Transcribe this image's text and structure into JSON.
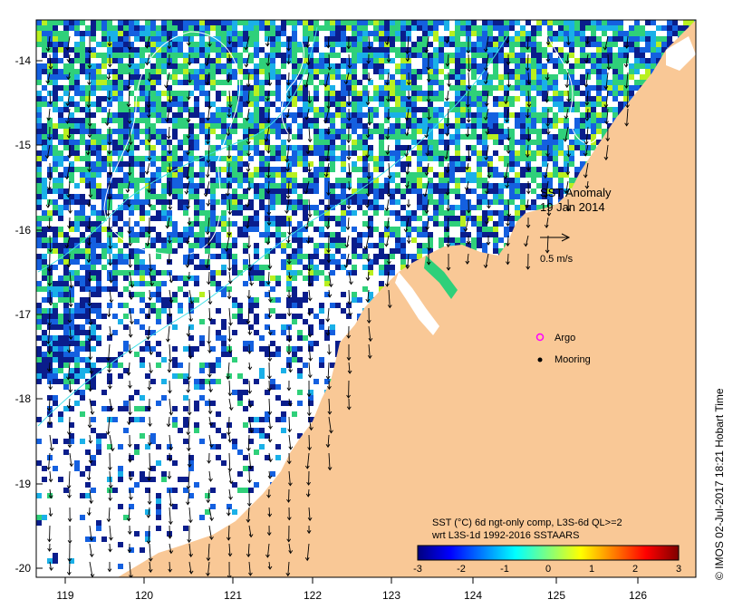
{
  "map": {
    "title_line1": "SST Anomaly",
    "title_line2": "19 Jan 2014",
    "scale_vector_label": "0.5 m/s",
    "legend": {
      "argo_label": "Argo",
      "mooring_label": "Mooring",
      "argo_color": "#ff00ff",
      "mooring_color": "#000000"
    },
    "colorbar": {
      "caption_line1": "SST (°C) 6d ngt-only comp, L3S-6d QL>=2",
      "caption_line2": "wrt L3S-1d 1992-2016 SSTAARS",
      "ticks": [
        "-3",
        "-2",
        "-1",
        "0",
        "1",
        "2",
        "3"
      ],
      "colors": [
        "#00007f",
        "#0000ff",
        "#007fff",
        "#00ffff",
        "#7fff7f",
        "#ffff00",
        "#ff7f00",
        "#ff0000",
        "#7f0000"
      ]
    },
    "credit": "© IMOS 02-Jul-2017 18:21 Hobart Time",
    "x_ticks": [
      "119",
      "120",
      "121",
      "122",
      "123",
      "124",
      "125",
      "126"
    ],
    "y_ticks": [
      "-14",
      "-15",
      "-16",
      "-17",
      "-18",
      "-19",
      "-20"
    ],
    "colors": {
      "land": "#f9c896",
      "ocean_dark": "#0a1d8c",
      "ocean_blue": "#1460e0",
      "ocean_cyan": "#1ab0e8",
      "ocean_green": "#2fd07a",
      "ocean_yellowgreen": "#b8f020",
      "contour": "#40e0e8"
    }
  }
}
